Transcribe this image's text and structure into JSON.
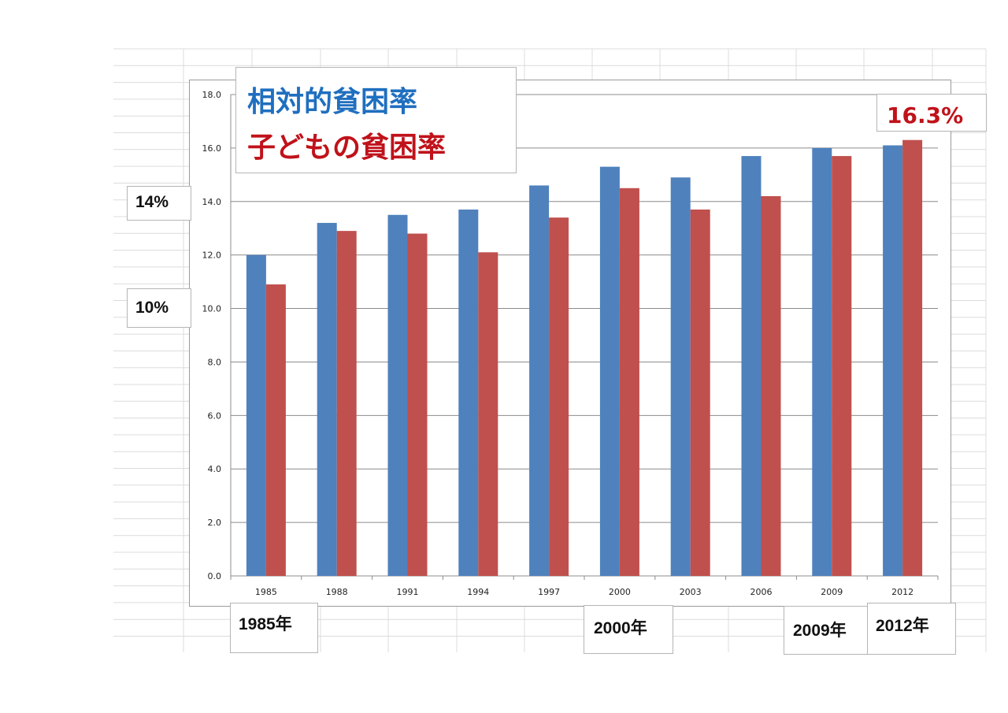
{
  "chart_data": {
    "type": "bar",
    "categories": [
      "1985",
      "1988",
      "1991",
      "1994",
      "1997",
      "2000",
      "2003",
      "2006",
      "2009",
      "2012"
    ],
    "series": [
      {
        "name": "相対的貧困率",
        "color": "#4f81bd",
        "values": [
          12.0,
          13.2,
          13.5,
          13.7,
          14.6,
          15.3,
          14.9,
          15.7,
          16.0,
          16.1
        ]
      },
      {
        "name": "子どもの貧困率",
        "color": "#c0504d",
        "values": [
          10.9,
          12.9,
          12.8,
          12.1,
          13.4,
          14.5,
          13.7,
          14.2,
          15.7,
          16.3
        ]
      }
    ],
    "ylim": [
      0,
      18
    ],
    "yticks": [
      "0.0",
      "2.0",
      "4.0",
      "6.0",
      "8.0",
      "10.0",
      "12.0",
      "14.0",
      "16.0",
      "18.0"
    ],
    "grid": true,
    "title": "",
    "xlabel": "",
    "ylabel": ""
  },
  "legend": {
    "line1": "相対的貧困率",
    "line1_color": "#1f6fbf",
    "line2": "子どもの貧困率",
    "line2_color": "#c0121a"
  },
  "annotations": {
    "callout_2012": "16.3%",
    "pct_14": "14%",
    "pct_10": "10%",
    "year_1985": "1985年",
    "year_2000": "2000年",
    "year_2009": "2009年",
    "year_2012": "2012年"
  }
}
